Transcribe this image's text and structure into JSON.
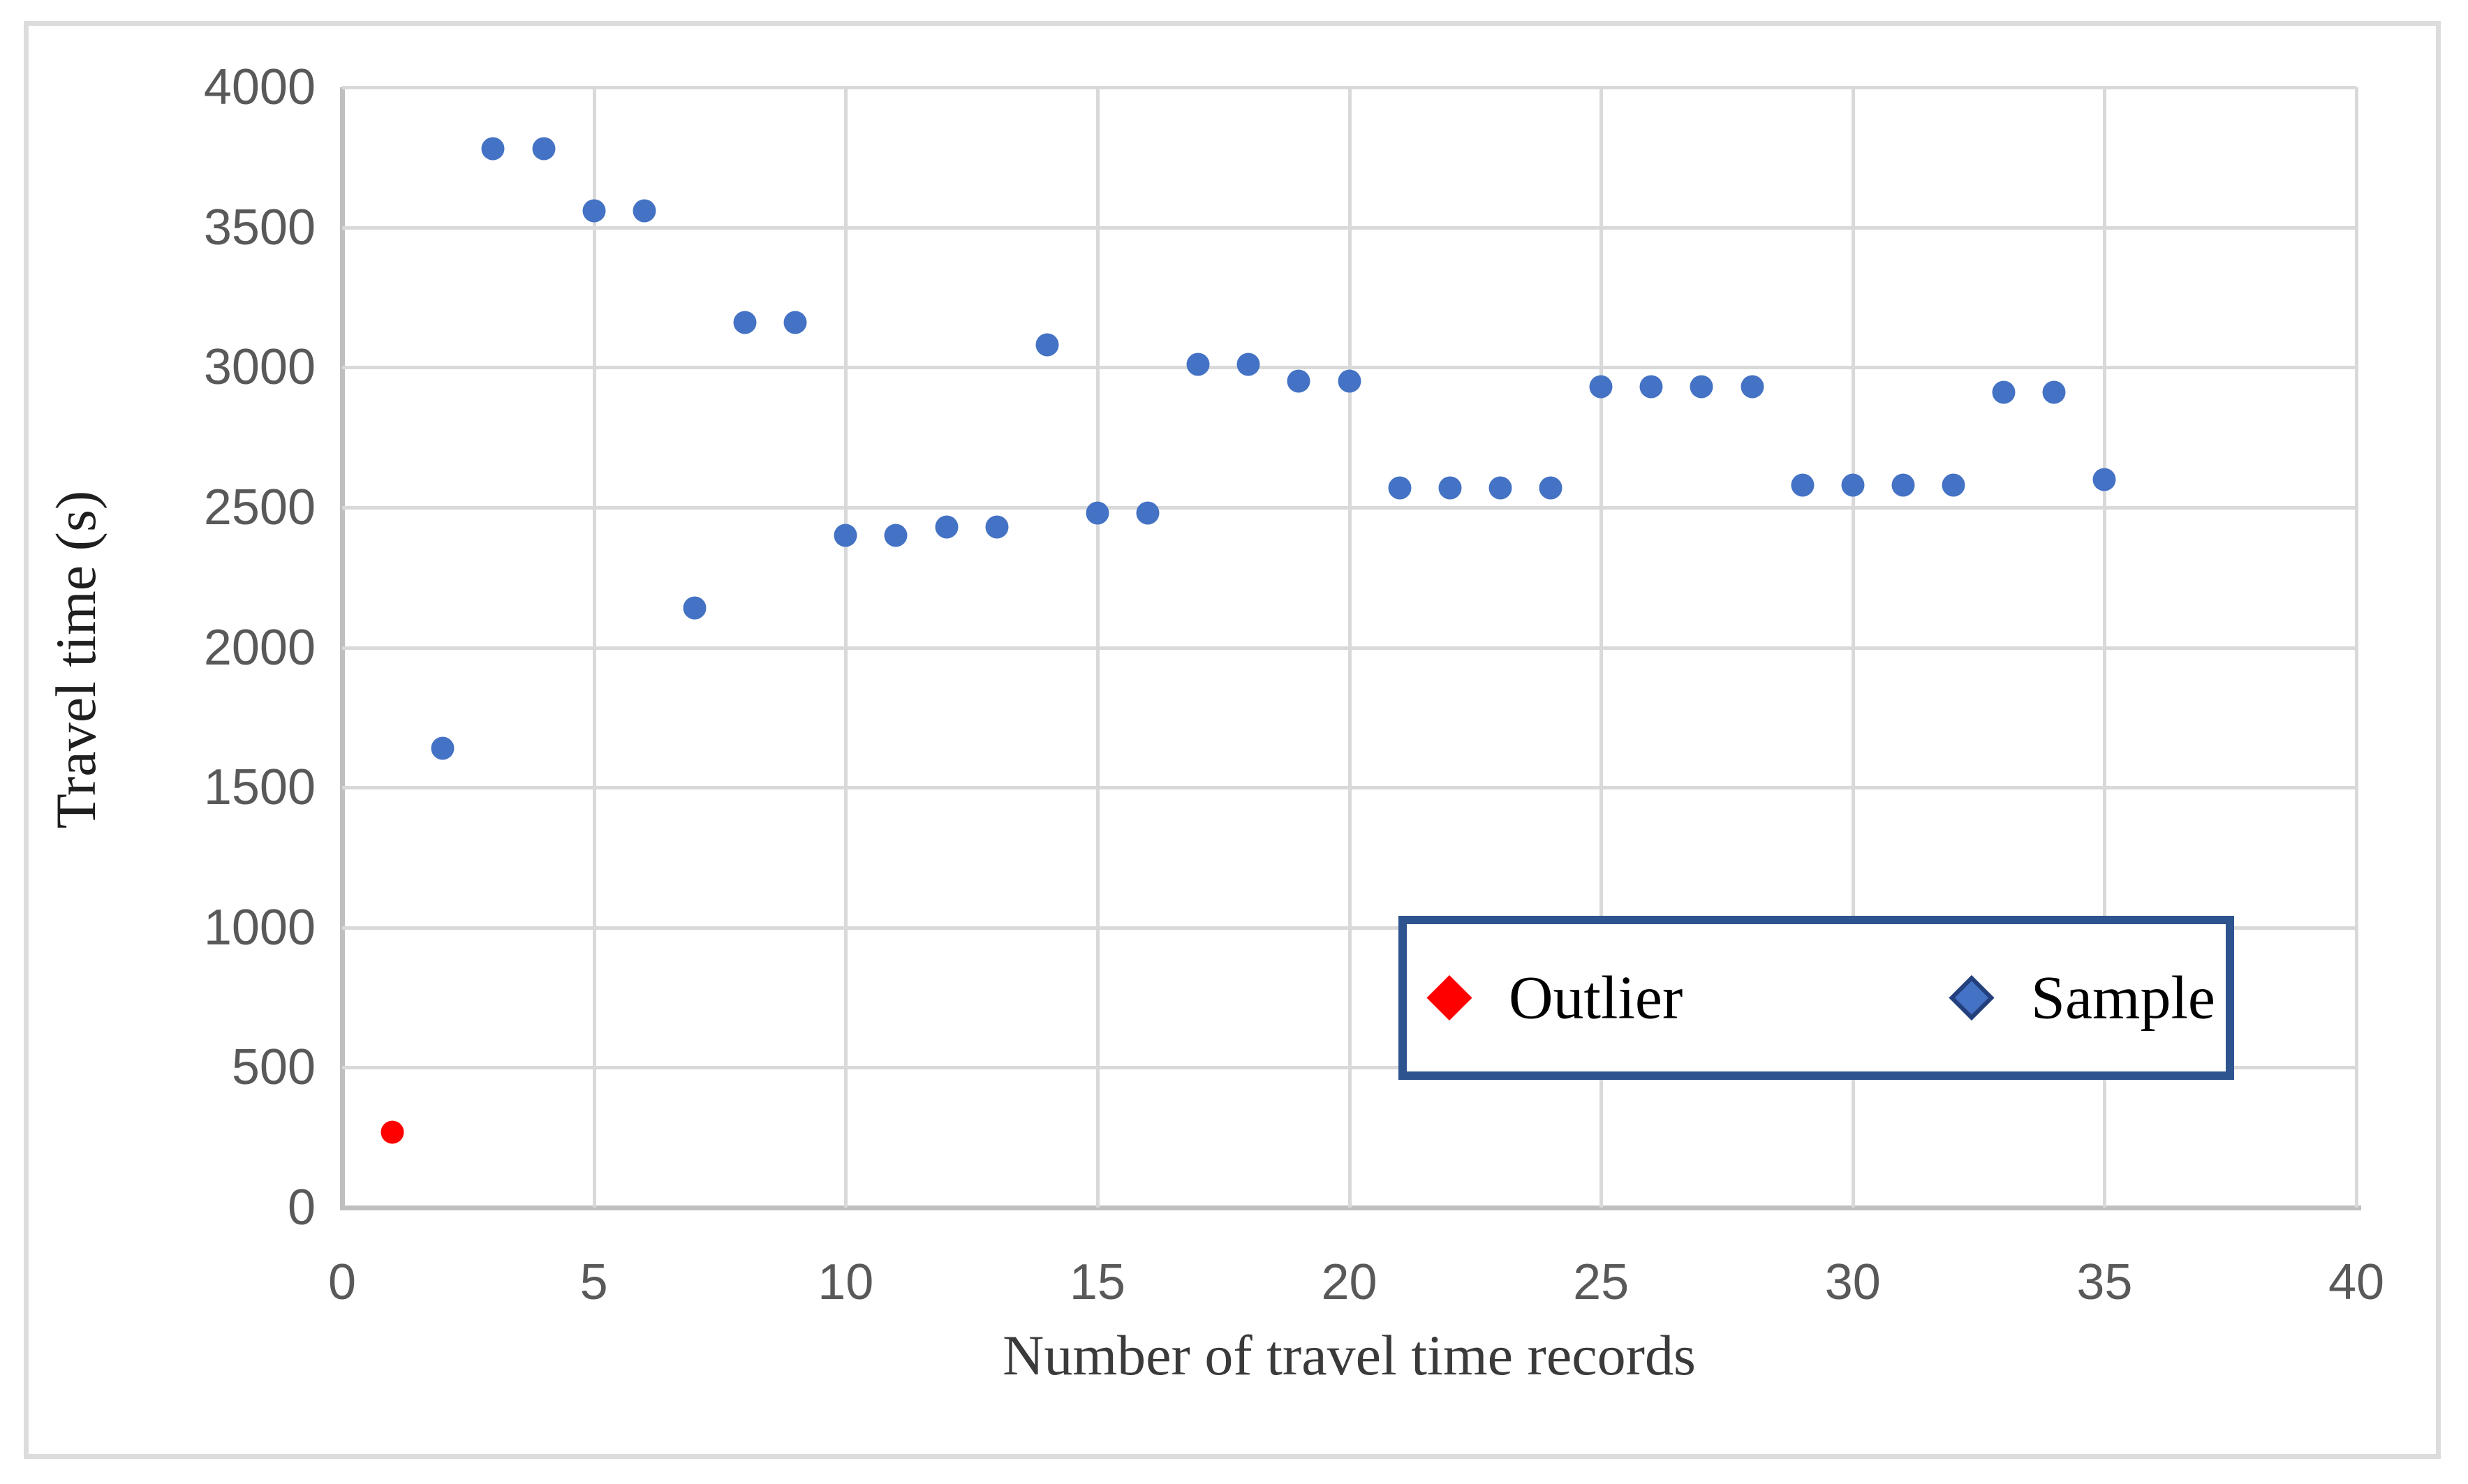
{
  "chart_data": {
    "type": "scatter",
    "title": "",
    "xlabel": "Number of travel time records",
    "ylabel": "Travel time (s)",
    "xlim": [
      0,
      40
    ],
    "ylim": [
      0,
      4000
    ],
    "x_ticks": [
      0,
      5,
      10,
      15,
      20,
      25,
      30,
      35,
      40
    ],
    "y_ticks": [
      0,
      500,
      1000,
      1500,
      2000,
      2500,
      3000,
      3500,
      4000
    ],
    "grid": true,
    "legend": {
      "position": "inside-bottom-right",
      "entries": [
        {
          "label": "Outlier",
          "marker": "diamond",
          "color": "#FF0000"
        },
        {
          "label": "Sample",
          "marker": "diamond",
          "color": "#4472C4"
        }
      ]
    },
    "series": [
      {
        "name": "Outlier",
        "color": "#FF0000",
        "points": [
          [
            1,
            270
          ]
        ]
      },
      {
        "name": "Sample",
        "color": "#4472C4",
        "points": [
          [
            2,
            1640
          ],
          [
            3,
            3780
          ],
          [
            4,
            3780
          ],
          [
            5,
            3560
          ],
          [
            6,
            3560
          ],
          [
            7,
            2140
          ],
          [
            8,
            3160
          ],
          [
            9,
            3160
          ],
          [
            10,
            2400
          ],
          [
            11,
            2400
          ],
          [
            12,
            2430
          ],
          [
            13,
            2430
          ],
          [
            14,
            3080
          ],
          [
            15,
            2480
          ],
          [
            16,
            2480
          ],
          [
            17,
            3010
          ],
          [
            18,
            3010
          ],
          [
            19,
            2950
          ],
          [
            20,
            2950
          ],
          [
            21,
            2570
          ],
          [
            22,
            2570
          ],
          [
            23,
            2570
          ],
          [
            24,
            2570
          ],
          [
            25,
            2930
          ],
          [
            26,
            2930
          ],
          [
            27,
            2930
          ],
          [
            28,
            2930
          ],
          [
            29,
            2580
          ],
          [
            30,
            2580
          ],
          [
            31,
            2580
          ],
          [
            32,
            2580
          ],
          [
            33,
            2910
          ],
          [
            34,
            2910
          ],
          [
            35,
            2600
          ]
        ]
      }
    ]
  },
  "colors": {
    "sample": "#4472C4",
    "outlier": "#FF0000",
    "legend_border": "#2E5490",
    "gridline": "#D9D9D9",
    "axis_line": "#BFBFBF",
    "tick_text": "#595959",
    "frame_border": "#DCDCDC"
  }
}
